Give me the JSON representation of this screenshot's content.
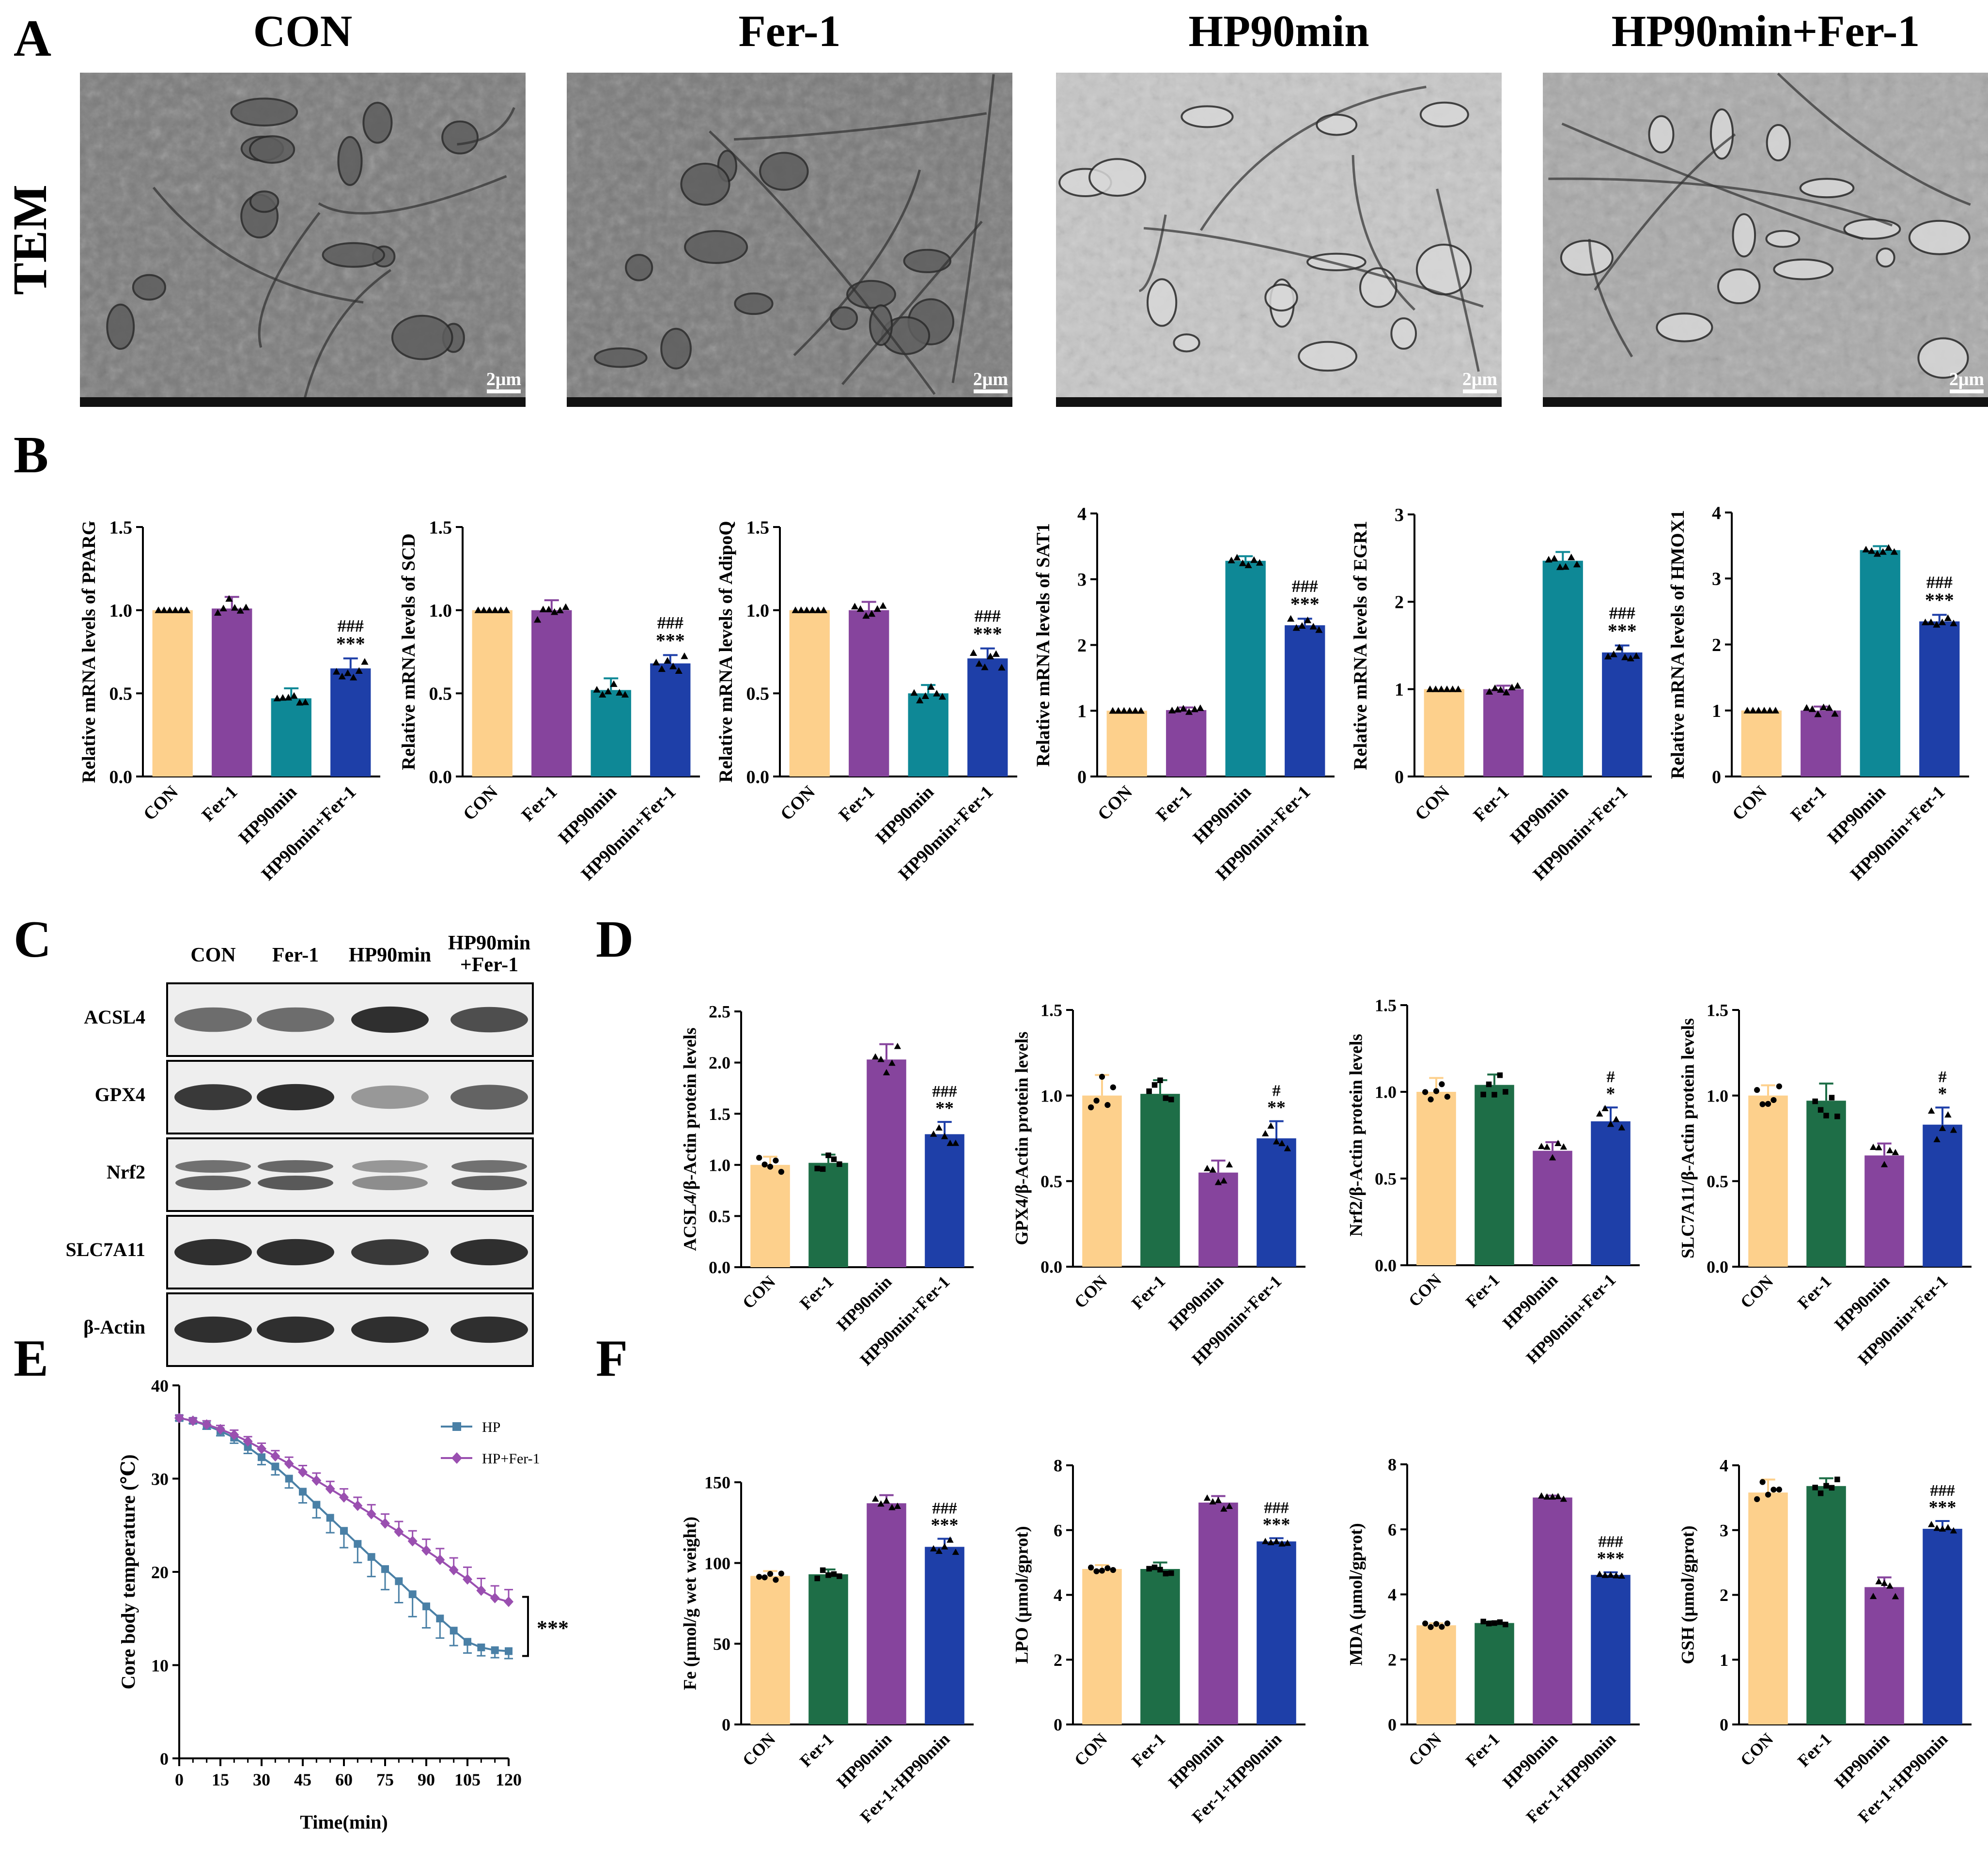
{
  "colors": {
    "con": "#FDD08C",
    "fer": "#86449D",
    "hp_teal": "#0E8896",
    "hp_fer_blue": "#1E3FA8",
    "green": "#1E6E47",
    "purple": "#86449D",
    "blue": "#1E3FA8",
    "line_hp": "#4A80A6",
    "line_hpfer": "#9A4FB0"
  },
  "panel_letters": [
    "A",
    "B",
    "C",
    "D",
    "E",
    "F"
  ],
  "panelA": {
    "row_label": "TEM",
    "scale_label": "2μm",
    "images": [
      {
        "title": "CON"
      },
      {
        "title": "Fer-1"
      },
      {
        "title": "HP90min"
      },
      {
        "title": "HP90min+Fer-1"
      }
    ]
  },
  "panelC": {
    "columns": [
      "CON",
      "Fer-1",
      "HP90min",
      "HP90min",
      "+Fer-1"
    ],
    "rows": [
      "ACSL4",
      "GPX4",
      "Nrf2",
      "SLC7A11",
      "β-Actin"
    ],
    "band_intensity": [
      [
        0.55,
        0.55,
        0.85,
        0.7
      ],
      [
        0.8,
        0.85,
        0.35,
        0.6
      ],
      [
        0.6,
        0.65,
        0.4,
        0.6
      ],
      [
        0.85,
        0.85,
        0.8,
        0.85
      ],
      [
        0.85,
        0.85,
        0.85,
        0.85
      ]
    ]
  },
  "panelE": {
    "ylabel": "Core body temperature (℃)",
    "xlabel": "Time(min)",
    "sig": "***"
  },
  "chart_data": [
    {
      "id": "B1",
      "type": "bar",
      "ylabel": "Relative mRNA levels of PPARG",
      "categories": [
        "CON",
        "Fer-1",
        "HP90min",
        "HP90min+Fer-1"
      ],
      "values": [
        1.0,
        1.01,
        0.47,
        0.65
      ],
      "errors": [
        0,
        0.07,
        0.06,
        0.06
      ],
      "ylim": [
        0,
        1.5
      ],
      "yticks": [
        "0.0",
        "0.5",
        "1.0",
        "1.5"
      ],
      "yticks_values": [
        0,
        0.5,
        1.0,
        1.5
      ],
      "marker": "tri",
      "color_keys": [
        "con",
        "fer",
        "hp_teal",
        "hp_fer_blue"
      ],
      "annotations": [
        "",
        "",
        "",
        "***"
      ],
      "annotations2": [
        "",
        "",
        "",
        "###"
      ]
    },
    {
      "id": "B2",
      "type": "bar",
      "ylabel": "Relative mRNA levels of SCD",
      "categories": [
        "CON",
        "Fer-1",
        "HP90min",
        "HP90min+Fer-1"
      ],
      "values": [
        1.0,
        1.0,
        0.52,
        0.68
      ],
      "errors": [
        0,
        0.06,
        0.07,
        0.05
      ],
      "ylim": [
        0,
        1.5
      ],
      "yticks": [
        "0.0",
        "0.5",
        "1.0",
        "1.5"
      ],
      "yticks_values": [
        0,
        0.5,
        1.0,
        1.5
      ],
      "marker": "tri",
      "color_keys": [
        "con",
        "fer",
        "hp_teal",
        "hp_fer_blue"
      ],
      "annotations": [
        "",
        "",
        "",
        "***"
      ],
      "annotations2": [
        "",
        "",
        "",
        "###"
      ]
    },
    {
      "id": "B3",
      "type": "bar",
      "ylabel": "Relative mRNA levels of AdipoQ",
      "categories": [
        "CON",
        "Fer-1",
        "HP90min",
        "HP90min+Fer-1"
      ],
      "values": [
        1.0,
        1.0,
        0.5,
        0.71
      ],
      "errors": [
        0,
        0.05,
        0.05,
        0.06
      ],
      "ylim": [
        0,
        1.5
      ],
      "yticks": [
        "0.0",
        "0.5",
        "1.0",
        "1.5"
      ],
      "yticks_values": [
        0,
        0.5,
        1.0,
        1.5
      ],
      "marker": "tri",
      "color_keys": [
        "con",
        "fer",
        "hp_teal",
        "hp_fer_blue"
      ],
      "annotations": [
        "",
        "",
        "",
        "***"
      ],
      "annotations2": [
        "",
        "",
        "",
        "###"
      ]
    },
    {
      "id": "B4",
      "type": "bar",
      "ylabel": "Relative mRNA levels of SAT1",
      "categories": [
        "CON",
        "Fer-1",
        "HP90min",
        "HP90min+Fer-1"
      ],
      "values": [
        1.0,
        1.01,
        3.28,
        2.3
      ],
      "errors": [
        0,
        0.04,
        0.07,
        0.1
      ],
      "ylim": [
        0,
        4
      ],
      "yticks": [
        "0",
        "1",
        "2",
        "3",
        "4"
      ],
      "yticks_values": [
        0,
        1,
        2,
        3,
        4
      ],
      "marker": "tri",
      "color_keys": [
        "con",
        "fer",
        "hp_teal",
        "hp_fer_blue"
      ],
      "annotations": [
        "",
        "",
        "",
        "***"
      ],
      "annotations2": [
        "",
        "",
        "",
        "###"
      ]
    },
    {
      "id": "B5",
      "type": "bar",
      "ylabel": "Relative mRNA levels of EGR1",
      "categories": [
        "CON",
        "Fer-1",
        "HP90min",
        "HP90min+Fer-1"
      ],
      "values": [
        1.0,
        1.0,
        2.47,
        1.42
      ],
      "errors": [
        0,
        0.04,
        0.1,
        0.08
      ],
      "ylim": [
        0,
        3
      ],
      "yticks": [
        "0",
        "1",
        "2",
        "3"
      ],
      "yticks_values": [
        0,
        1,
        2,
        3
      ],
      "marker": "tri",
      "color_keys": [
        "con",
        "fer",
        "hp_teal",
        "hp_fer_blue"
      ],
      "annotations": [
        "",
        "",
        "",
        "***"
      ],
      "annotations2": [
        "",
        "",
        "",
        "###"
      ]
    },
    {
      "id": "B6",
      "type": "bar",
      "ylabel": "Relative mRNA levels of HMOX1",
      "categories": [
        "CON",
        "Fer-1",
        "HP90min",
        "HP90min+Fer-1"
      ],
      "values": [
        1.0,
        1.0,
        3.43,
        2.35
      ],
      "errors": [
        0,
        0.06,
        0.06,
        0.1
      ],
      "ylim": [
        0,
        4
      ],
      "yticks": [
        "0",
        "1",
        "2",
        "3",
        "4"
      ],
      "yticks_values": [
        0,
        1,
        2,
        3,
        4
      ],
      "marker": "tri",
      "color_keys": [
        "con",
        "fer",
        "hp_teal",
        "hp_fer_blue"
      ],
      "annotations": [
        "",
        "",
        "",
        "***"
      ],
      "annotations2": [
        "",
        "",
        "",
        "###"
      ]
    },
    {
      "id": "D1",
      "type": "bar",
      "ylabel": "ACSL4/β-Actin protein levels",
      "categories": [
        "CON",
        "Fer-1",
        "HP90min",
        "HP90min+Fer-1"
      ],
      "values": [
        1.0,
        1.02,
        2.03,
        1.3
      ],
      "errors": [
        0.08,
        0.08,
        0.15,
        0.12
      ],
      "ylim": [
        0,
        2.5
      ],
      "yticks": [
        "0.0",
        "0.5",
        "1.0",
        "1.5",
        "2.0",
        "2.5"
      ],
      "yticks_values": [
        0,
        0.5,
        1.0,
        1.5,
        2.0,
        2.5
      ],
      "marker": "mixed",
      "color_keys": [
        "con",
        "green",
        "purple",
        "blue"
      ],
      "annotations": [
        "",
        "",
        "",
        "**"
      ],
      "annotations2": [
        "",
        "",
        "",
        "###"
      ]
    },
    {
      "id": "D2",
      "type": "bar",
      "ylabel": "GPX4/β-Actin protein levels",
      "categories": [
        "CON",
        "Fer-1",
        "HP90min",
        "HP90min+Fer-1"
      ],
      "values": [
        1.0,
        1.01,
        0.55,
        0.75
      ],
      "errors": [
        0.12,
        0.08,
        0.07,
        0.1
      ],
      "ylim": [
        0,
        1.5
      ],
      "yticks": [
        "0.0",
        "0.5",
        "1.0",
        "1.5"
      ],
      "yticks_values": [
        0,
        0.5,
        1.0,
        1.5
      ],
      "marker": "mixed",
      "color_keys": [
        "con",
        "green",
        "purple",
        "blue"
      ],
      "annotations": [
        "",
        "",
        "",
        "**"
      ],
      "annotations2": [
        "",
        "",
        "",
        "#"
      ]
    },
    {
      "id": "D3",
      "type": "bar",
      "ylabel": "Nrf2/β-Actin protein levels",
      "categories": [
        "CON",
        "Fer-1",
        "HP90min",
        "HP90min+Fer-1"
      ],
      "values": [
        1.0,
        1.04,
        0.66,
        0.83
      ],
      "errors": [
        0.08,
        0.06,
        0.05,
        0.08
      ],
      "ylim": [
        0,
        1.5
      ],
      "yticks": [
        "0.0",
        "0.5",
        "1.0",
        "1.5"
      ],
      "yticks_values": [
        0,
        0.5,
        1.0,
        1.5
      ],
      "marker": "mixed",
      "color_keys": [
        "con",
        "green",
        "purple",
        "blue"
      ],
      "annotations": [
        "",
        "",
        "",
        "*"
      ],
      "annotations2": [
        "",
        "",
        "",
        "#"
      ]
    },
    {
      "id": "D4",
      "type": "bar",
      "ylabel": "SLC7A11/β-Actin protein levels",
      "categories": [
        "CON",
        "Fer-1",
        "HP90min",
        "HP90min+Fer-1"
      ],
      "values": [
        1.0,
        0.97,
        0.65,
        0.83
      ],
      "errors": [
        0.06,
        0.1,
        0.07,
        0.1
      ],
      "ylim": [
        0,
        1.5
      ],
      "yticks": [
        "0.0",
        "0.5",
        "1.0",
        "1.5"
      ],
      "yticks_values": [
        0,
        0.5,
        1.0,
        1.5
      ],
      "marker": "mixed",
      "color_keys": [
        "con",
        "green",
        "purple",
        "blue"
      ],
      "annotations": [
        "",
        "",
        "",
        "*"
      ],
      "annotations2": [
        "",
        "",
        "",
        "#"
      ]
    },
    {
      "id": "F1",
      "type": "bar",
      "ylabel": "Fe (μmol/g wet weight)",
      "categories": [
        "CON",
        "Fer-1",
        "HP90min",
        "Fer-1+HP90min"
      ],
      "values": [
        92,
        93,
        137,
        110
      ],
      "errors": [
        3,
        3,
        5,
        5
      ],
      "ylim": [
        0,
        150
      ],
      "yticks": [
        "0",
        "50",
        "100",
        "150"
      ],
      "yticks_values": [
        0,
        50,
        100,
        150
      ],
      "marker": "mixed",
      "color_keys": [
        "con",
        "green",
        "purple",
        "blue"
      ],
      "annotations": [
        "",
        "",
        "",
        "***"
      ],
      "annotations2": [
        "",
        "",
        "",
        "###"
      ]
    },
    {
      "id": "F2",
      "type": "bar",
      "ylabel": "LPO (μmol/gprot)",
      "categories": [
        "CON",
        "Fer-1",
        "HP90min",
        "Fer-1+HP90min"
      ],
      "values": [
        4.8,
        4.8,
        6.85,
        5.65
      ],
      "errors": [
        0.12,
        0.2,
        0.2,
        0.1
      ],
      "ylim": [
        0,
        8
      ],
      "yticks": [
        "0",
        "2",
        "4",
        "6",
        "8"
      ],
      "yticks_values": [
        0,
        2,
        4,
        6,
        8
      ],
      "marker": "mixed",
      "color_keys": [
        "con",
        "green",
        "purple",
        "blue"
      ],
      "annotations": [
        "",
        "",
        "",
        "***"
      ],
      "annotations2": [
        "",
        "",
        "",
        "###"
      ]
    },
    {
      "id": "F3",
      "type": "bar",
      "ylabel": "MDA (μmol/gprot)",
      "categories": [
        "CON",
        "Fer-1",
        "HP90min",
        "Fer-1+HP90min"
      ],
      "values": [
        3.05,
        3.12,
        6.98,
        4.6
      ],
      "errors": [
        0.06,
        0.05,
        0.06,
        0.08
      ],
      "ylim": [
        0,
        8
      ],
      "yticks": [
        "0",
        "2",
        "4",
        "6",
        "8"
      ],
      "yticks_values": [
        0,
        2,
        4,
        6,
        8
      ],
      "marker": "mixed",
      "color_keys": [
        "con",
        "green",
        "purple",
        "blue"
      ],
      "annotations": [
        "",
        "",
        "",
        "***"
      ],
      "annotations2": [
        "",
        "",
        "",
        "###"
      ]
    },
    {
      "id": "F4",
      "type": "bar",
      "ylabel": "GSH (μmol/gprot)",
      "categories": [
        "CON",
        "Fer-1",
        "HP90min",
        "Fer-1+HP90min"
      ],
      "values": [
        3.58,
        3.68,
        2.12,
        3.02
      ],
      "errors": [
        0.2,
        0.12,
        0.15,
        0.12
      ],
      "ylim": [
        0,
        4
      ],
      "yticks": [
        "0",
        "1",
        "2",
        "3",
        "4"
      ],
      "yticks_values": [
        0,
        1,
        2,
        3,
        4
      ],
      "marker": "mixed",
      "color_keys": [
        "con",
        "green",
        "purple",
        "blue"
      ],
      "annotations": [
        "",
        "",
        "",
        "***"
      ],
      "annotations2": [
        "",
        "",
        "",
        "###"
      ]
    },
    {
      "id": "E",
      "type": "line",
      "xlabel": "Time(min)",
      "ylabel": "Core body temperature (℃)",
      "x": [
        0,
        5,
        10,
        15,
        20,
        25,
        30,
        35,
        40,
        45,
        50,
        55,
        60,
        65,
        70,
        75,
        80,
        85,
        90,
        95,
        100,
        105,
        110,
        115,
        120
      ],
      "xticks": [
        "0",
        "15",
        "30",
        "45",
        "60",
        "75",
        "90",
        "105",
        "120"
      ],
      "xticks_values": [
        0,
        15,
        30,
        45,
        60,
        75,
        90,
        105,
        120
      ],
      "yticks": [
        "0",
        "10",
        "20",
        "30",
        "40"
      ],
      "yticks_values": [
        0,
        10,
        20,
        30,
        40
      ],
      "xlim": [
        0,
        120
      ],
      "ylim": [
        0,
        40
      ],
      "series": [
        {
          "name": "HP",
          "color_key": "line_hp",
          "marker": "square",
          "values": [
            36.5,
            36.2,
            35.7,
            35.1,
            34.4,
            33.4,
            32.3,
            31.3,
            30.0,
            28.6,
            27.2,
            25.8,
            24.4,
            23.0,
            21.6,
            20.3,
            19.0,
            17.6,
            16.3,
            15.0,
            13.7,
            12.5,
            11.9,
            11.6,
            11.5
          ],
          "errors": [
            0.3,
            0.3,
            0.4,
            0.5,
            0.6,
            0.7,
            0.8,
            0.9,
            1.0,
            1.2,
            1.4,
            1.6,
            1.8,
            2.0,
            2.1,
            2.2,
            2.3,
            2.4,
            2.3,
            2.1,
            1.6,
            1.2,
            0.9,
            0.8,
            0.8
          ]
        },
        {
          "name": "HP+Fer-1",
          "color_key": "line_hpfer",
          "marker": "diamond",
          "values": [
            36.5,
            36.2,
            35.8,
            35.3,
            34.7,
            34.0,
            33.2,
            32.4,
            31.6,
            30.7,
            29.8,
            28.9,
            28.0,
            27.1,
            26.2,
            25.2,
            24.3,
            23.3,
            22.3,
            21.3,
            20.2,
            19.2,
            18.0,
            17.2,
            16.8
          ],
          "errors": [
            0.3,
            0.3,
            0.4,
            0.4,
            0.5,
            0.5,
            0.6,
            0.6,
            0.7,
            0.7,
            0.8,
            0.8,
            0.9,
            0.9,
            1.0,
            1.0,
            1.1,
            1.1,
            1.2,
            1.2,
            1.3,
            1.3,
            1.3,
            1.3,
            1.3
          ]
        }
      ],
      "annotations": [
        "***"
      ]
    }
  ]
}
